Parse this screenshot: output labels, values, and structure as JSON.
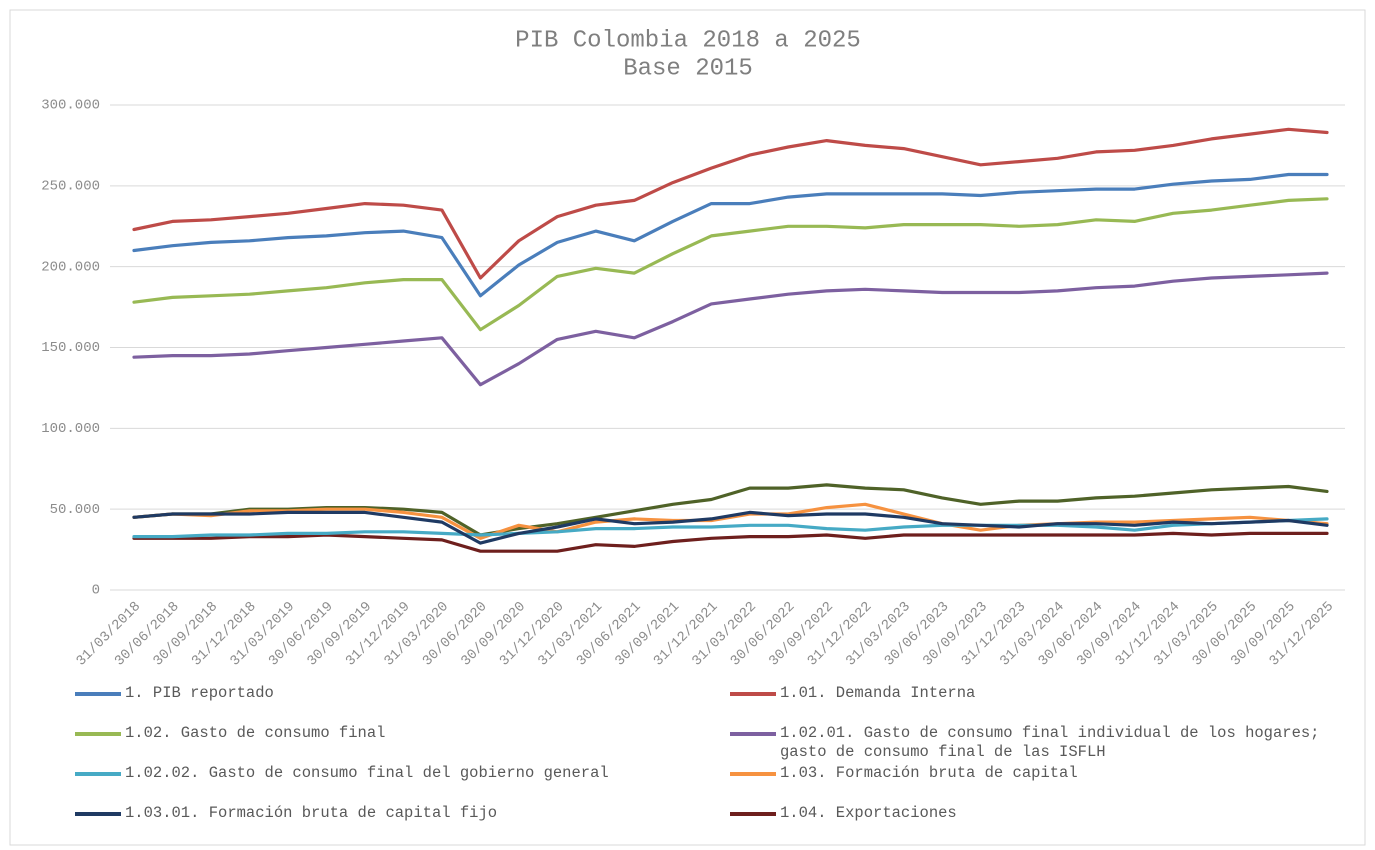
{
  "chart_data": {
    "type": "line",
    "title": "PIB Colombia 2018 a 2025",
    "subtitle": "Base 2015",
    "categories": [
      "31/03/2018",
      "30/06/2018",
      "30/09/2018",
      "31/12/2018",
      "31/03/2019",
      "30/06/2019",
      "30/09/2019",
      "31/12/2019",
      "31/03/2020",
      "30/06/2020",
      "30/09/2020",
      "31/12/2020",
      "31/03/2021",
      "30/06/2021",
      "30/09/2021",
      "31/12/2021",
      "31/03/2022",
      "30/06/2022",
      "30/09/2022",
      "31/12/2022",
      "31/03/2023",
      "30/06/2023",
      "30/09/2023",
      "31/12/2023",
      "31/03/2024",
      "30/06/2024",
      "30/09/2024",
      "31/12/2024",
      "31/03/2025",
      "30/06/2025",
      "30/09/2025",
      "31/12/2025"
    ],
    "ylim": [
      0,
      300000
    ],
    "yticks": [
      0,
      {
        "value": 50000,
        "label": "50.000"
      },
      {
        "value": 100000,
        "label": "100.000"
      },
      {
        "value": 150000,
        "label": "150.000"
      },
      {
        "value": 200000,
        "label": "200.000"
      },
      {
        "value": 250000,
        "label": "250.000"
      },
      {
        "value": 300000,
        "label": "300.000"
      }
    ],
    "grid": true,
    "legend": "bottom",
    "series": [
      {
        "name": "1. PIB reportado",
        "color": "#4a7ebb",
        "values": [
          210000,
          213000,
          215000,
          216000,
          218000,
          219000,
          221000,
          222000,
          218000,
          182000,
          201000,
          215000,
          222000,
          216000,
          228000,
          239000,
          239000,
          243000,
          245000,
          245000,
          245000,
          245000,
          244000,
          246000,
          247000,
          248000,
          248000,
          251000,
          253000,
          254000,
          257000,
          257000
        ]
      },
      {
        "name": "1.01. Demanda Interna",
        "color": "#be4b48",
        "values": [
          223000,
          228000,
          229000,
          231000,
          233000,
          236000,
          239000,
          238000,
          235000,
          193000,
          216000,
          231000,
          238000,
          241000,
          252000,
          261000,
          269000,
          274000,
          278000,
          275000,
          273000,
          268000,
          263000,
          265000,
          267000,
          271000,
          272000,
          275000,
          279000,
          282000,
          285000,
          283000
        ]
      },
      {
        "name": "1.02. Gasto de consumo final",
        "color": "#98b954",
        "values": [
          178000,
          181000,
          182000,
          183000,
          185000,
          187000,
          190000,
          192000,
          192000,
          161000,
          176000,
          194000,
          199000,
          196000,
          208000,
          219000,
          222000,
          225000,
          225000,
          224000,
          226000,
          226000,
          226000,
          225000,
          226000,
          229000,
          228000,
          233000,
          235000,
          238000,
          241000,
          242000
        ]
      },
      {
        "name": "1.02.01. Gasto de consumo final individual de los hogares; gasto de consumo final de las ISFLH",
        "color": "#7d60a0",
        "values": [
          144000,
          145000,
          145000,
          146000,
          148000,
          150000,
          152000,
          154000,
          156000,
          127000,
          140000,
          155000,
          160000,
          156000,
          166000,
          177000,
          180000,
          183000,
          185000,
          186000,
          185000,
          184000,
          184000,
          184000,
          185000,
          187000,
          188000,
          191000,
          193000,
          194000,
          195000,
          196000
        ]
      },
      {
        "name": "1.02.02. Gasto de consumo final del gobierno general",
        "color": "#46aac5",
        "values": [
          33000,
          33000,
          34000,
          34000,
          35000,
          35000,
          36000,
          36000,
          35000,
          34000,
          35000,
          36000,
          38000,
          38000,
          39000,
          39000,
          40000,
          40000,
          38000,
          37000,
          39000,
          40000,
          40000,
          40000,
          40000,
          39000,
          37000,
          40000,
          41000,
          42000,
          43000,
          44000
        ]
      },
      {
        "name": "1.03. Formación bruta de capital",
        "color": "#f69240",
        "values": [
          45000,
          47000,
          46000,
          49000,
          49000,
          50000,
          50000,
          48000,
          45000,
          32000,
          40000,
          36000,
          42000,
          44000,
          43000,
          43000,
          47000,
          47000,
          51000,
          53000,
          47000,
          41000,
          37000,
          40000,
          41000,
          42000,
          42000,
          43000,
          44000,
          45000,
          43000,
          41000
        ]
      },
      {
        "name": "1.03.01. Formación bruta de capital fijo",
        "color": "#1f3a63",
        "values": [
          45000,
          47000,
          47000,
          47000,
          48000,
          48000,
          48000,
          45000,
          42000,
          29000,
          35000,
          39000,
          44000,
          41000,
          42000,
          44000,
          48000,
          46000,
          47000,
          47000,
          45000,
          41000,
          40000,
          39000,
          41000,
          41000,
          40000,
          42000,
          41000,
          42000,
          43000,
          40000
        ]
      },
      {
        "name": "1.04. Exportaciones",
        "color": "#6e1f1d",
        "values": [
          32000,
          32000,
          32000,
          33000,
          33000,
          34000,
          33000,
          32000,
          31000,
          24000,
          24000,
          24000,
          28000,
          27000,
          30000,
          32000,
          33000,
          33000,
          34000,
          32000,
          34000,
          34000,
          34000,
          34000,
          34000,
          34000,
          34000,
          35000,
          34000,
          35000,
          35000,
          35000
        ]
      },
      {
        "color": "#4f6228",
        "values": [
          45000,
          47000,
          47000,
          50000,
          50000,
          51000,
          51000,
          50000,
          48000,
          34000,
          38000,
          41000,
          45000,
          49000,
          53000,
          56000,
          63000,
          63000,
          65000,
          63000,
          62000,
          57000,
          53000,
          55000,
          55000,
          57000,
          58000,
          60000,
          62000,
          63000,
          64000,
          61000
        ]
      }
    ]
  }
}
